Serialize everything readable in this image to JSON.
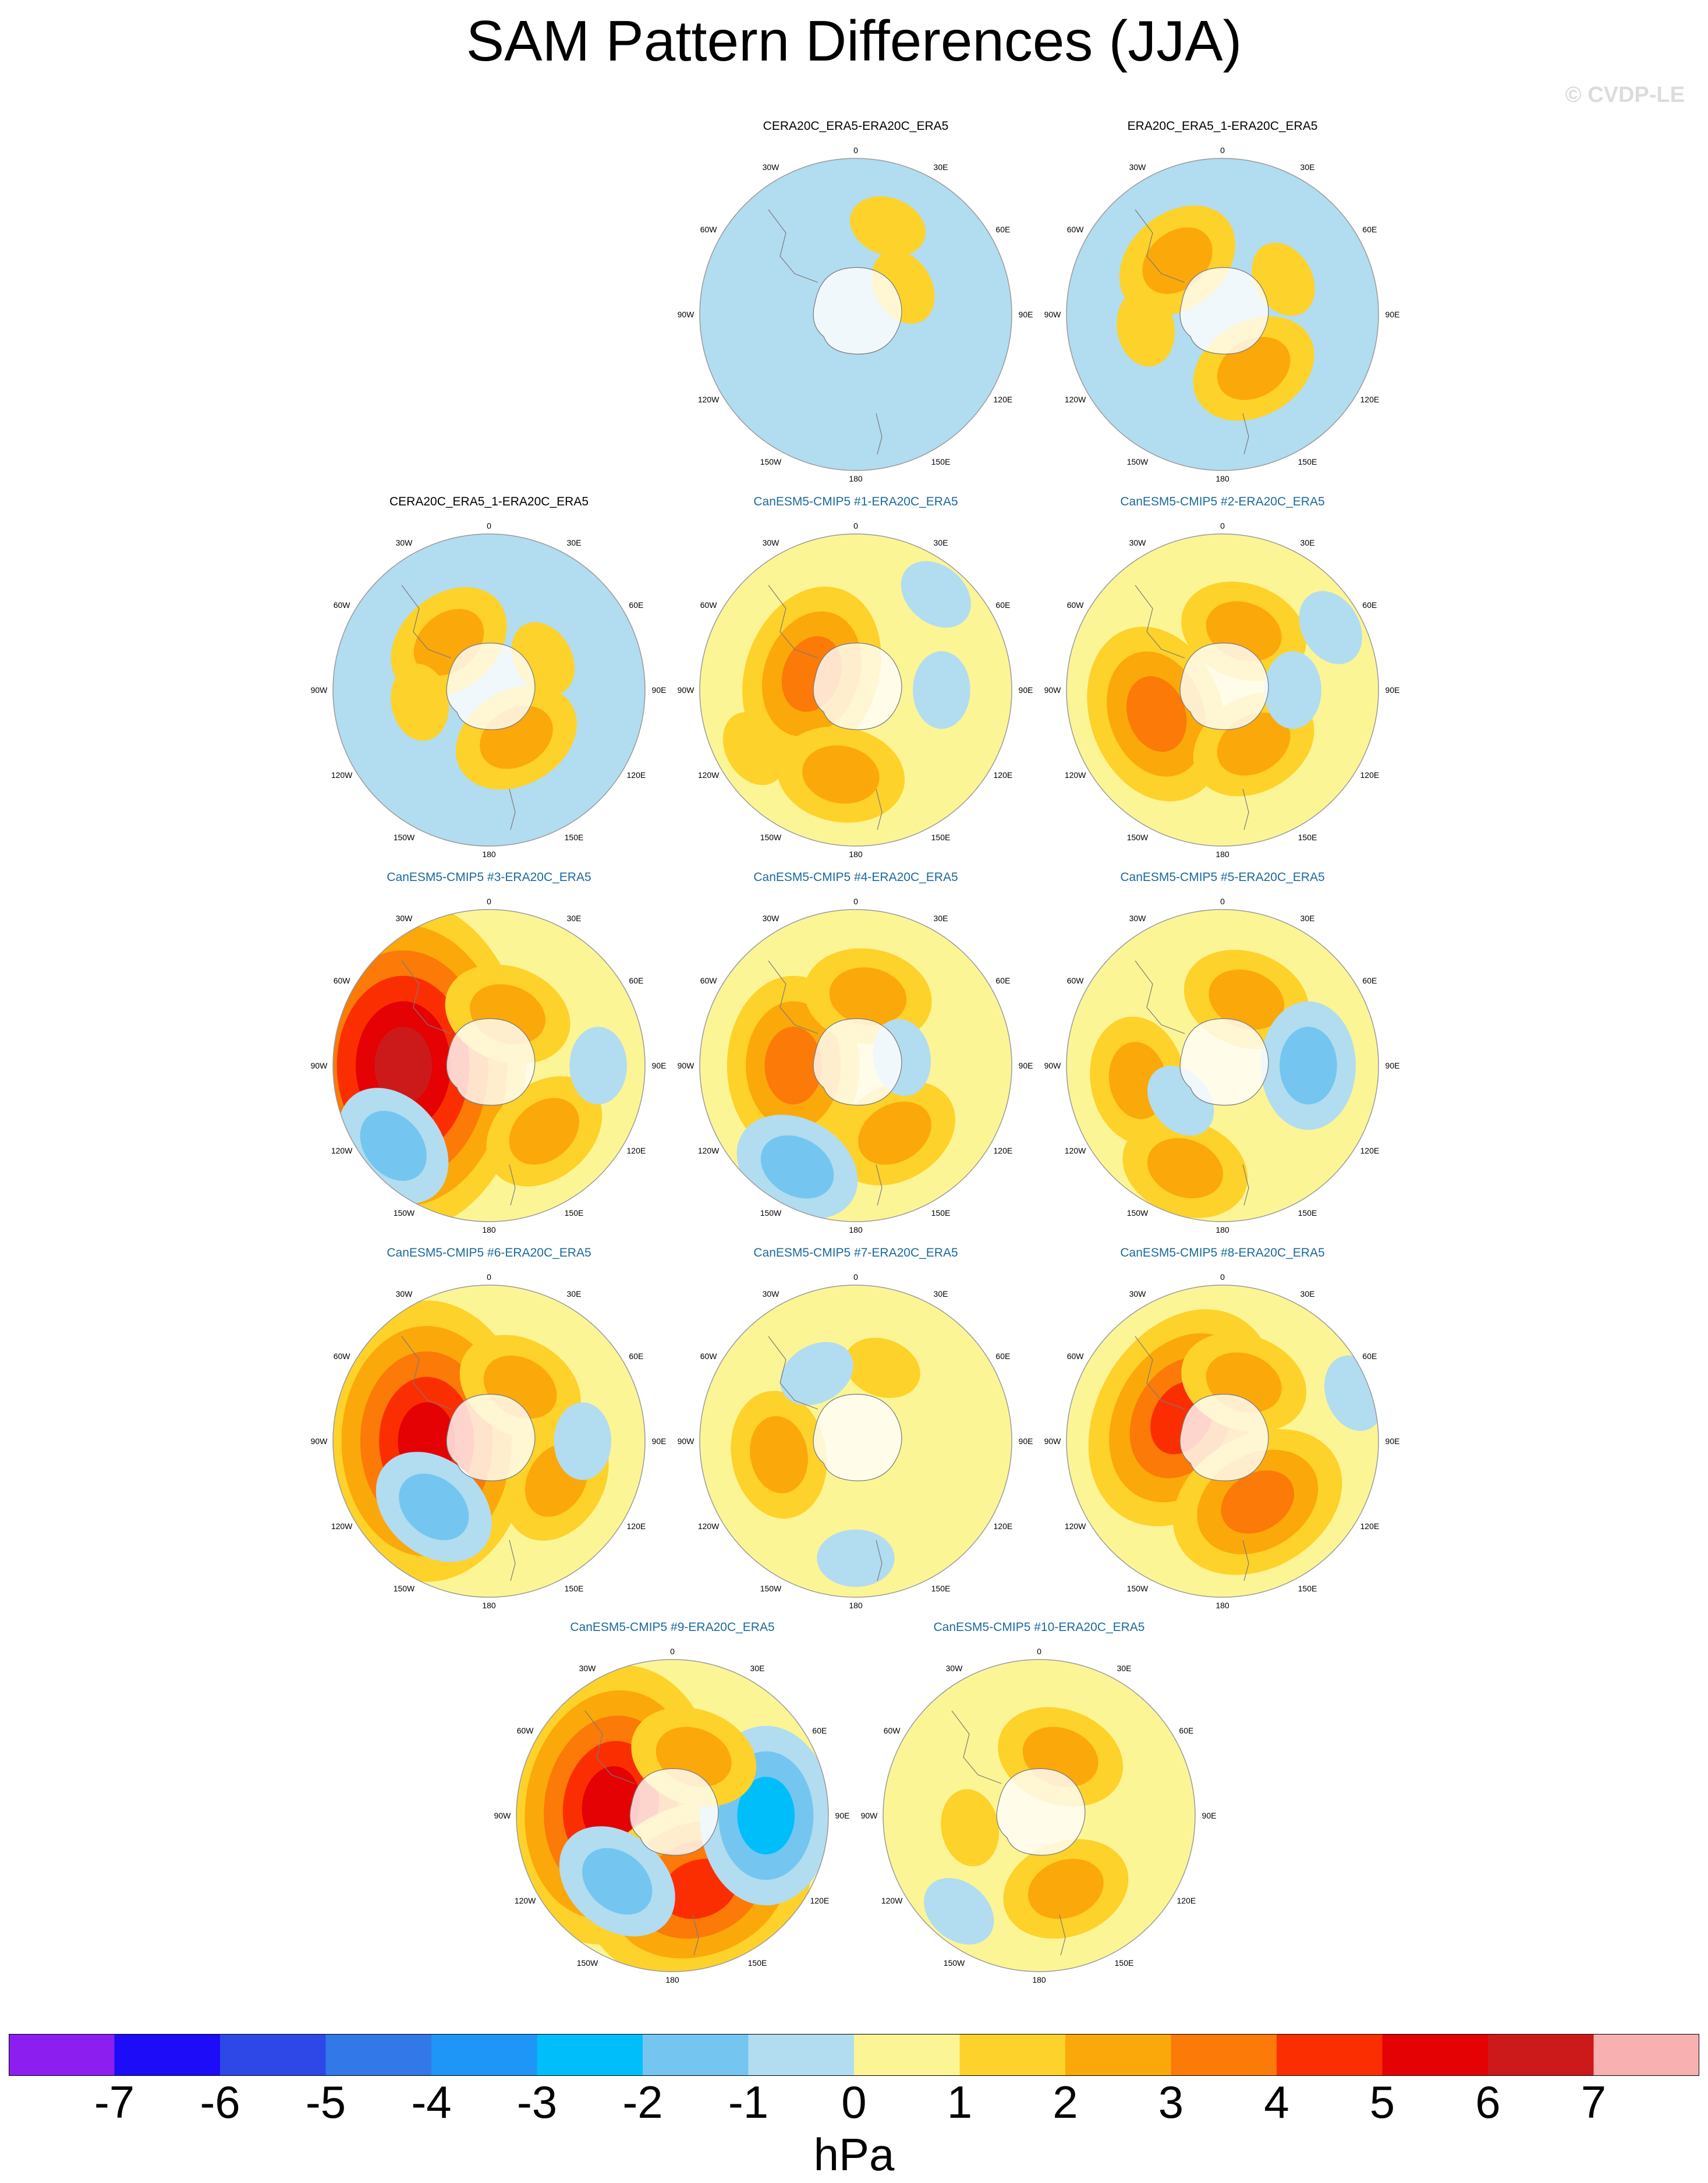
{
  "title": "SAM Pattern Differences (JJA)",
  "watermark": "© CVDP-LE",
  "colors": {
    "map_outline": "#7a7a7a",
    "land_white": "#ffffff",
    "member_title": "#1a6a9a",
    "obs_title": "#000000"
  },
  "chart_data": {
    "type": "heatmap",
    "projection": "south polar stereographic",
    "season": "JJA",
    "variable": "SAM pattern difference",
    "longitude_labels": [
      "0",
      "30E",
      "60E",
      "90E",
      "120E",
      "150E",
      "180",
      "150W",
      "120W",
      "90W",
      "60W",
      "30W"
    ],
    "colorbar": {
      "units": "hPa",
      "tick_labels": [
        "-7",
        "-6",
        "-5",
        "-4",
        "-3",
        "-2",
        "-1",
        "0",
        "1",
        "2",
        "3",
        "4",
        "5",
        "6",
        "7"
      ],
      "colors": [
        "#8c1ef0",
        "#1c0cf8",
        "#2e48e8",
        "#3278e8",
        "#1e96f8",
        "#00befa",
        "#74c6f0",
        "#b2dcf0",
        "#fcf596",
        "#fdd22a",
        "#fba80a",
        "#fb7a08",
        "#fb2e02",
        "#e40204",
        "#cc1a1a",
        "#f8b0b0"
      ]
    },
    "panels": [
      {
        "title": "CERA20C_ERA5-ERA20C_ERA5",
        "label_color": "obs",
        "blobs": [
          [
            60,
            0.35,
            1
          ],
          [
            200,
            0.55,
            -1
          ],
          [
            170,
            0.72,
            -1
          ],
          [
            20,
            0.6,
            1
          ]
        ],
        "base": 0
      },
      {
        "title": "ERA20C_ERA5_1-ERA20C_ERA5",
        "label_color": "obs",
        "blobs": [
          [
            60,
            0.45,
            1
          ],
          [
            150,
            0.4,
            2
          ],
          [
            320,
            0.45,
            2
          ],
          [
            260,
            0.5,
            1
          ]
        ],
        "base": 0
      },
      {
        "title": "CERA20C_ERA5_1-ERA20C_ERA5",
        "label_color": "obs",
        "blobs": [
          [
            150,
            0.35,
            2
          ],
          [
            320,
            0.4,
            2
          ],
          [
            60,
            0.4,
            1
          ],
          [
            260,
            0.45,
            1
          ]
        ],
        "base": 0
      },
      {
        "title": "CanESM5-CMIP5 #1-ERA20C_ERA5",
        "label_color": "member",
        "blobs": [
          [
            290,
            0.3,
            3
          ],
          [
            190,
            0.55,
            2
          ],
          [
            90,
            0.55,
            -1
          ],
          [
            40,
            0.8,
            -1
          ],
          [
            240,
            0.75,
            1
          ]
        ],
        "base": 1
      },
      {
        "title": "CanESM5-CMIP5 #2-ERA20C_ERA5",
        "label_color": "member",
        "blobs": [
          [
            250,
            0.45,
            3
          ],
          [
            150,
            0.4,
            2
          ],
          [
            20,
            0.4,
            2
          ],
          [
            90,
            0.45,
            -1
          ],
          [
            60,
            0.8,
            -1
          ]
        ],
        "base": 1
      },
      {
        "title": "CanESM5-CMIP5 #3-ERA20C_ERA5",
        "label_color": "member",
        "blobs": [
          [
            270,
            0.55,
            6
          ],
          [
            20,
            0.35,
            2
          ],
          [
            140,
            0.55,
            2
          ],
          [
            230,
            0.8,
            -2
          ],
          [
            90,
            0.7,
            -1
          ]
        ],
        "base": 1
      },
      {
        "title": "CanESM5-CMIP5 #4-ERA20C_ERA5",
        "label_color": "member",
        "blobs": [
          [
            270,
            0.4,
            3
          ],
          [
            10,
            0.45,
            2
          ],
          [
            150,
            0.5,
            2
          ],
          [
            210,
            0.75,
            -2
          ],
          [
            80,
            0.3,
            -1
          ]
        ],
        "base": 1
      },
      {
        "title": "CanESM5-CMIP5 #5-ERA20C_ERA5",
        "label_color": "member",
        "blobs": [
          [
            260,
            0.55,
            2
          ],
          [
            200,
            0.7,
            2
          ],
          [
            20,
            0.45,
            2
          ],
          [
            90,
            0.55,
            -2
          ],
          [
            230,
            0.35,
            -1
          ]
        ],
        "base": 1
      },
      {
        "title": "CanESM5-CMIP5 #6-ERA20C_ERA5",
        "label_color": "member",
        "blobs": [
          [
            270,
            0.4,
            5
          ],
          [
            30,
            0.4,
            2
          ],
          [
            120,
            0.5,
            2
          ],
          [
            220,
            0.55,
            -2
          ],
          [
            90,
            0.6,
            -1
          ]
        ],
        "base": 1
      },
      {
        "title": "CanESM5-CMIP5 #7-ERA20C_ERA5",
        "label_color": "member",
        "blobs": [
          [
            260,
            0.5,
            2
          ],
          [
            20,
            0.5,
            1
          ],
          [
            330,
            0.5,
            -1
          ],
          [
            180,
            0.75,
            -1
          ]
        ],
        "base": 1
      },
      {
        "title": "CanESM5-CMIP5 #8-ERA20C_ERA5",
        "label_color": "member",
        "blobs": [
          [
            300,
            0.3,
            4
          ],
          [
            150,
            0.45,
            3
          ],
          [
            20,
            0.4,
            2
          ],
          [
            70,
            0.9,
            -1
          ]
        ],
        "base": 1
      },
      {
        "title": "CanESM5-CMIP5 #9-ERA20C_ERA5",
        "label_color": "member",
        "blobs": [
          [
            280,
            0.4,
            5
          ],
          [
            160,
            0.5,
            4
          ],
          [
            90,
            0.6,
            -3
          ],
          [
            220,
            0.55,
            -2
          ],
          [
            20,
            0.4,
            2
          ]
        ],
        "base": 1
      },
      {
        "title": "CanESM5-CMIP5 #10-ERA20C_ERA5",
        "label_color": "member",
        "blobs": [
          [
            20,
            0.4,
            2
          ],
          [
            160,
            0.5,
            2
          ],
          [
            260,
            0.45,
            1
          ],
          [
            220,
            0.8,
            -1
          ]
        ],
        "base": 1
      }
    ]
  }
}
